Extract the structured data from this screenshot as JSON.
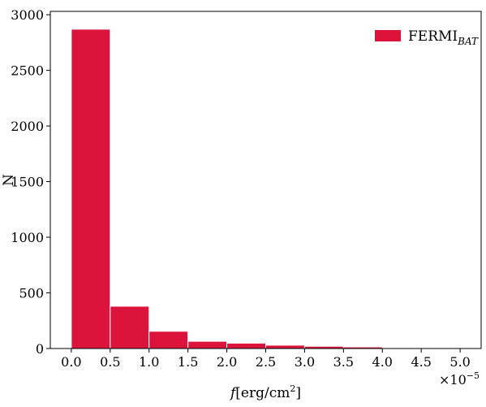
{
  "chart_data": {
    "type": "bar",
    "title": "",
    "xlabel": {
      "italic": "f",
      "main": "[erg/cm",
      "sup": "2",
      "end": "]"
    },
    "ylabel": "N",
    "x_multiplier": {
      "base": "×10",
      "exp": "−5"
    },
    "xlim": [
      -0.27,
      5.27
    ],
    "ylim": [
      0,
      3030
    ],
    "xticks": [
      0.0,
      0.5,
      1.0,
      1.5,
      2.0,
      2.5,
      3.0,
      3.5,
      4.0,
      4.5,
      5.0
    ],
    "xtick_labels": [
      "0.0",
      "0.5",
      "1.0",
      "1.5",
      "2.0",
      "2.5",
      "3.0",
      "3.5",
      "4.0",
      "4.5",
      "5.0"
    ],
    "yticks": [
      0,
      500,
      1000,
      1500,
      2000,
      2500,
      3000
    ],
    "ytick_labels": [
      "0",
      "500",
      "1000",
      "1500",
      "2000",
      "2500",
      "3000"
    ],
    "bins": [
      {
        "x0": 0.0,
        "x1": 0.5,
        "count": 2870
      },
      {
        "x0": 0.5,
        "x1": 1.0,
        "count": 380
      },
      {
        "x0": 1.0,
        "x1": 1.5,
        "count": 155
      },
      {
        "x0": 1.5,
        "x1": 2.0,
        "count": 65
      },
      {
        "x0": 2.0,
        "x1": 2.5,
        "count": 48
      },
      {
        "x0": 2.5,
        "x1": 3.0,
        "count": 30
      },
      {
        "x0": 3.0,
        "x1": 3.5,
        "count": 20
      },
      {
        "x0": 3.5,
        "x1": 4.0,
        "count": 14
      },
      {
        "x0": 4.0,
        "x1": 4.5,
        "count": 5
      },
      {
        "x0": 4.5,
        "x1": 5.0,
        "count": 2
      }
    ],
    "series": [
      {
        "name_main": "FERMI",
        "name_sub": "BAT",
        "color": "#DC143C"
      }
    ],
    "legend_position": "top-right",
    "grid": false
  }
}
